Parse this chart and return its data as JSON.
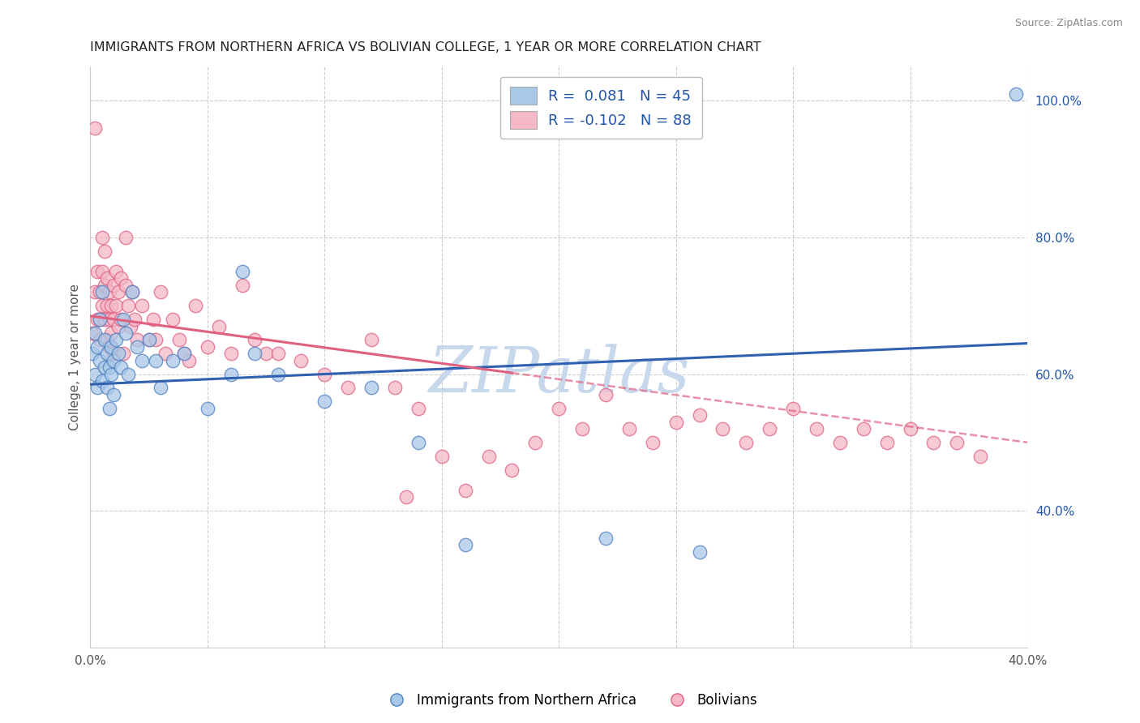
{
  "title": "IMMIGRANTS FROM NORTHERN AFRICA VS BOLIVIAN COLLEGE, 1 YEAR OR MORE CORRELATION CHART",
  "source": "Source: ZipAtlas.com",
  "ylabel": "College, 1 year or more",
  "xlim": [
    0.0,
    0.4
  ],
  "ylim": [
    0.2,
    1.05
  ],
  "xticks": [
    0.0,
    0.05,
    0.1,
    0.15,
    0.2,
    0.25,
    0.3,
    0.35,
    0.4
  ],
  "yticks_right": [
    0.4,
    0.6,
    0.8,
    1.0
  ],
  "ytick_right_labels": [
    "40.0%",
    "60.0%",
    "80.0%",
    "100.0%"
  ],
  "blue_R": 0.081,
  "blue_N": 45,
  "pink_R": -0.102,
  "pink_N": 88,
  "blue_color": "#A8C8E8",
  "pink_color": "#F4B8C8",
  "blue_edge_color": "#5080C0",
  "pink_edge_color": "#E06080",
  "blue_line_color": "#3060B0",
  "pink_line_color": "#E06080",
  "watermark": "ZIPatlas",
  "watermark_color": "#C8D8EC",
  "legend_text_color": "#2255AA",
  "blue_x": [
    0.001,
    0.002,
    0.002,
    0.003,
    0.003,
    0.004,
    0.004,
    0.005,
    0.005,
    0.006,
    0.006,
    0.007,
    0.007,
    0.008,
    0.008,
    0.009,
    0.009,
    0.01,
    0.01,
    0.011,
    0.012,
    0.013,
    0.014,
    0.015,
    0.016,
    0.018,
    0.02,
    0.022,
    0.025,
    0.028,
    0.03,
    0.035,
    0.04,
    0.05,
    0.06,
    0.065,
    0.07,
    0.08,
    0.1,
    0.12,
    0.14,
    0.16,
    0.22,
    0.26,
    0.395
  ],
  "blue_y": [
    0.63,
    0.66,
    0.6,
    0.64,
    0.58,
    0.68,
    0.62,
    0.72,
    0.59,
    0.65,
    0.61,
    0.63,
    0.58,
    0.61,
    0.55,
    0.64,
    0.6,
    0.62,
    0.57,
    0.65,
    0.63,
    0.61,
    0.68,
    0.66,
    0.6,
    0.72,
    0.64,
    0.62,
    0.65,
    0.62,
    0.58,
    0.62,
    0.63,
    0.55,
    0.6,
    0.75,
    0.63,
    0.6,
    0.56,
    0.58,
    0.5,
    0.35,
    0.36,
    0.34,
    1.01
  ],
  "pink_x": [
    0.001,
    0.002,
    0.002,
    0.003,
    0.003,
    0.004,
    0.004,
    0.004,
    0.005,
    0.005,
    0.005,
    0.006,
    0.006,
    0.006,
    0.007,
    0.007,
    0.007,
    0.008,
    0.008,
    0.008,
    0.009,
    0.009,
    0.01,
    0.01,
    0.01,
    0.011,
    0.011,
    0.012,
    0.012,
    0.013,
    0.013,
    0.014,
    0.015,
    0.015,
    0.016,
    0.017,
    0.018,
    0.019,
    0.02,
    0.022,
    0.025,
    0.027,
    0.028,
    0.03,
    0.032,
    0.035,
    0.038,
    0.04,
    0.042,
    0.045,
    0.05,
    0.055,
    0.06,
    0.065,
    0.07,
    0.075,
    0.08,
    0.09,
    0.1,
    0.11,
    0.12,
    0.13,
    0.135,
    0.14,
    0.15,
    0.16,
    0.17,
    0.18,
    0.19,
    0.2,
    0.21,
    0.22,
    0.23,
    0.24,
    0.25,
    0.26,
    0.27,
    0.28,
    0.29,
    0.3,
    0.31,
    0.32,
    0.33,
    0.34,
    0.35,
    0.36,
    0.37,
    0.38
  ],
  "pink_y": [
    0.66,
    0.72,
    0.96,
    0.75,
    0.68,
    0.72,
    0.68,
    0.65,
    0.8,
    0.75,
    0.7,
    0.78,
    0.73,
    0.68,
    0.74,
    0.7,
    0.65,
    0.72,
    0.68,
    0.64,
    0.7,
    0.66,
    0.73,
    0.68,
    0.63,
    0.75,
    0.7,
    0.72,
    0.67,
    0.74,
    0.68,
    0.63,
    0.8,
    0.73,
    0.7,
    0.67,
    0.72,
    0.68,
    0.65,
    0.7,
    0.65,
    0.68,
    0.65,
    0.72,
    0.63,
    0.68,
    0.65,
    0.63,
    0.62,
    0.7,
    0.64,
    0.67,
    0.63,
    0.73,
    0.65,
    0.63,
    0.63,
    0.62,
    0.6,
    0.58,
    0.65,
    0.58,
    0.42,
    0.55,
    0.48,
    0.43,
    0.48,
    0.46,
    0.5,
    0.55,
    0.52,
    0.57,
    0.52,
    0.5,
    0.53,
    0.54,
    0.52,
    0.5,
    0.52,
    0.55,
    0.52,
    0.5,
    0.52,
    0.5,
    0.52,
    0.5,
    0.5,
    0.48
  ]
}
